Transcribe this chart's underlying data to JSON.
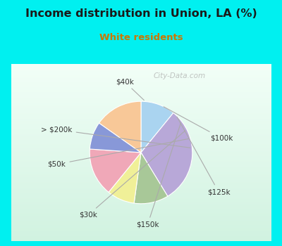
{
  "title": "Income distribution in Union, LA (%)",
  "subtitle": "White residents",
  "title_color": "#1a1a1a",
  "subtitle_color": "#b8860b",
  "background_outer": "#00f0f0",
  "background_inner_top": "#f0faf5",
  "background_inner_bottom": "#d8f0e8",
  "labels": [
    "$40k",
    "$100k",
    "$125k",
    "$150k",
    "$30k",
    "$50k",
    "> $200k"
  ],
  "sizes": [
    10,
    28,
    10,
    8,
    14,
    8,
    14
  ],
  "colors": [
    "#aad4f0",
    "#b8a8d8",
    "#a8c898",
    "#f0f098",
    "#f0a8b8",
    "#8898d8",
    "#f8c898"
  ],
  "startangle": 90,
  "watermark": "City-Data.com"
}
